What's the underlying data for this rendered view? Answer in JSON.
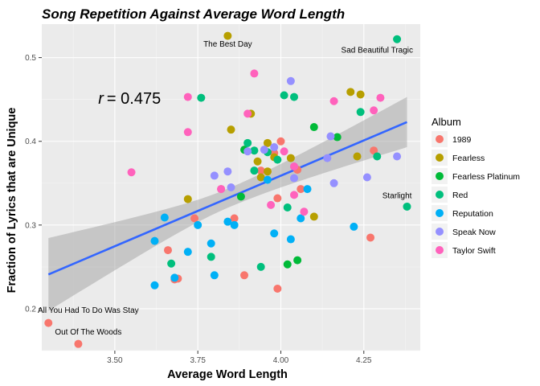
{
  "chart_data": {
    "type": "scatter",
    "title": "Song Repetition Against Average Word Length",
    "xlabel": "Average Word Length",
    "ylabel": "Fraction of Lyrics that are Unique",
    "xlim": [
      3.28,
      4.42
    ],
    "ylim": [
      0.15,
      0.54
    ],
    "x_ticks": [
      3.5,
      3.75,
      4.0,
      4.25
    ],
    "x_tick_labels": [
      "3.50",
      "3.75",
      "4.00",
      "4.25"
    ],
    "y_ticks": [
      0.2,
      0.3,
      0.4,
      0.5
    ],
    "y_tick_labels": [
      "0.2",
      "0.3",
      "0.4",
      "0.5"
    ],
    "grid": true,
    "legend_title": "Album",
    "legend_position": "right",
    "correlation_label_prefix": "r",
    "correlation_label_value": "= 0.475",
    "correlation_label_at": [
      3.45,
      0.445
    ],
    "trend_line": {
      "x": [
        3.3,
        4.38
      ],
      "y": [
        0.241,
        0.423
      ],
      "ci_lower": [
        0.198,
        0.393
      ],
      "ci_upper": [
        0.285,
        0.453
      ],
      "color": "#3366FF",
      "band_color": "#999999"
    },
    "series": [
      {
        "name": "1989",
        "color": "#F8766D",
        "points": [
          [
            3.3,
            0.183
          ],
          [
            3.39,
            0.158
          ],
          [
            3.68,
            0.235
          ],
          [
            3.69,
            0.236
          ],
          [
            3.66,
            0.27
          ],
          [
            3.74,
            0.308
          ],
          [
            3.82,
            0.343
          ],
          [
            3.86,
            0.308
          ],
          [
            3.89,
            0.24
          ],
          [
            3.94,
            0.365
          ],
          [
            3.98,
            0.386
          ],
          [
            3.99,
            0.224
          ],
          [
            3.99,
            0.332
          ],
          [
            4.0,
            0.4
          ],
          [
            4.05,
            0.366
          ],
          [
            4.06,
            0.343
          ],
          [
            4.27,
            0.285
          ],
          [
            4.28,
            0.389
          ]
        ]
      },
      {
        "name": "Fearless",
        "color": "#B79F00",
        "points": [
          [
            3.72,
            0.331
          ],
          [
            3.84,
            0.526
          ],
          [
            3.85,
            0.414
          ],
          [
            3.91,
            0.433
          ],
          [
            3.93,
            0.376
          ],
          [
            3.94,
            0.357
          ],
          [
            3.96,
            0.398
          ],
          [
            3.96,
            0.364
          ],
          [
            3.98,
            0.381
          ],
          [
            4.03,
            0.38
          ],
          [
            4.1,
            0.31
          ],
          [
            4.21,
            0.459
          ],
          [
            4.23,
            0.382
          ],
          [
            4.24,
            0.456
          ]
        ]
      },
      {
        "name": "Fearless Platinum",
        "color": "#00BA38",
        "points": [
          [
            3.88,
            0.334
          ],
          [
            3.89,
            0.39
          ],
          [
            4.02,
            0.253
          ],
          [
            4.05,
            0.258
          ],
          [
            4.1,
            0.417
          ],
          [
            4.17,
            0.405
          ]
        ]
      },
      {
        "name": "Red",
        "color": "#00BF7D",
        "points": [
          [
            3.67,
            0.254
          ],
          [
            3.76,
            0.452
          ],
          [
            3.79,
            0.262
          ],
          [
            3.9,
            0.398
          ],
          [
            3.92,
            0.389
          ],
          [
            3.92,
            0.365
          ],
          [
            3.94,
            0.25
          ],
          [
            3.96,
            0.387
          ],
          [
            3.99,
            0.378
          ],
          [
            4.01,
            0.455
          ],
          [
            4.02,
            0.321
          ],
          [
            4.04,
            0.453
          ],
          [
            4.24,
            0.435
          ],
          [
            4.29,
            0.382
          ],
          [
            4.35,
            0.522
          ],
          [
            4.38,
            0.322
          ]
        ]
      },
      {
        "name": "Reputation",
        "color": "#00B0F6",
        "points": [
          [
            3.62,
            0.228
          ],
          [
            3.62,
            0.281
          ],
          [
            3.65,
            0.309
          ],
          [
            3.68,
            0.237
          ],
          [
            3.72,
            0.268
          ],
          [
            3.75,
            0.3
          ],
          [
            3.79,
            0.278
          ],
          [
            3.8,
            0.24
          ],
          [
            3.84,
            0.304
          ],
          [
            3.86,
            0.3
          ],
          [
            3.96,
            0.354
          ],
          [
            3.98,
            0.29
          ],
          [
            4.03,
            0.283
          ],
          [
            4.06,
            0.308
          ],
          [
            4.08,
            0.343
          ],
          [
            4.22,
            0.298
          ]
        ]
      },
      {
        "name": "Speak Now",
        "color": "#9590FF",
        "points": [
          [
            3.8,
            0.359
          ],
          [
            3.84,
            0.364
          ],
          [
            3.85,
            0.345
          ],
          [
            3.9,
            0.388
          ],
          [
            3.95,
            0.39
          ],
          [
            3.98,
            0.393
          ],
          [
            4.03,
            0.472
          ],
          [
            4.04,
            0.356
          ],
          [
            4.04,
            0.37
          ],
          [
            4.14,
            0.38
          ],
          [
            4.15,
            0.406
          ],
          [
            4.16,
            0.35
          ],
          [
            4.26,
            0.357
          ],
          [
            4.35,
            0.382
          ]
        ]
      },
      {
        "name": "Taylor Swift",
        "color": "#FF62BC",
        "points": [
          [
            3.55,
            0.363
          ],
          [
            3.72,
            0.411
          ],
          [
            3.72,
            0.453
          ],
          [
            3.82,
            0.343
          ],
          [
            3.9,
            0.433
          ],
          [
            3.92,
            0.481
          ],
          [
            3.97,
            0.324
          ],
          [
            4.01,
            0.388
          ],
          [
            4.04,
            0.37
          ],
          [
            4.04,
            0.336
          ],
          [
            4.07,
            0.316
          ],
          [
            4.16,
            0.448
          ],
          [
            4.28,
            0.437
          ],
          [
            4.3,
            0.452
          ]
        ]
      }
    ],
    "annotations": [
      {
        "text": "The Best Day",
        "x": 3.84,
        "y": 0.513
      },
      {
        "text": "Sad Beautiful Tragic",
        "x": 4.29,
        "y": 0.506
      },
      {
        "text": "Starlight",
        "x": 4.35,
        "y": 0.332
      },
      {
        "text": "All You Had To Do Was Stay",
        "x": 3.42,
        "y": 0.195
      },
      {
        "text": "Out Of The Woods",
        "x": 3.42,
        "y": 0.169
      }
    ]
  }
}
